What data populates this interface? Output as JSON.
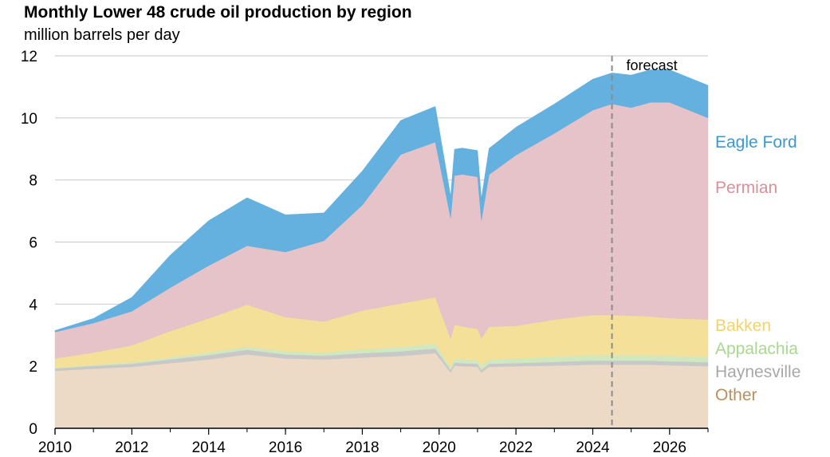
{
  "chart_data": {
    "type": "area",
    "stacked": true,
    "title": "Monthly Lower 48 crude oil production by region",
    "ylabel": "million barrels per day",
    "xlabel": "",
    "ylim": [
      0,
      12
    ],
    "xlim": [
      2010,
      2027
    ],
    "yticks": [
      0,
      2,
      4,
      6,
      8,
      10,
      12
    ],
    "xticks": [
      2010,
      2012,
      2014,
      2016,
      2018,
      2020,
      2022,
      2024,
      2026
    ],
    "forecast_label": "forecast",
    "forecast_start": 2024.5,
    "x": [
      2010,
      2011,
      2012,
      2013,
      2014,
      2015,
      2016,
      2017,
      2018,
      2019,
      2019.9,
      2020.3,
      2020.4,
      2020.6,
      2021.0,
      2021.1,
      2021.3,
      2022,
      2023,
      2024,
      2024.5,
      2025,
      2025.5,
      2026,
      2027
    ],
    "series": [
      {
        "name": "Other",
        "color": "#ecd9c6",
        "values": [
          1.85,
          1.92,
          1.98,
          2.1,
          2.22,
          2.38,
          2.25,
          2.22,
          2.28,
          2.33,
          2.42,
          1.8,
          2.02,
          2.0,
          1.98,
          1.8,
          1.98,
          2.0,
          2.02,
          2.05,
          2.05,
          2.05,
          2.05,
          2.03,
          2.0
        ]
      },
      {
        "name": "Haynesville",
        "color": "#c8c8c8",
        "values": [
          0.08,
          0.09,
          0.1,
          0.12,
          0.14,
          0.15,
          0.13,
          0.12,
          0.14,
          0.15,
          0.15,
          0.08,
          0.1,
          0.1,
          0.1,
          0.08,
          0.1,
          0.1,
          0.12,
          0.13,
          0.13,
          0.13,
          0.13,
          0.13,
          0.13
        ]
      },
      {
        "name": "Appalachia",
        "color": "#cfe8c0",
        "values": [
          0.02,
          0.03,
          0.04,
          0.06,
          0.08,
          0.1,
          0.1,
          0.1,
          0.12,
          0.14,
          0.15,
          0.1,
          0.12,
          0.13,
          0.12,
          0.12,
          0.14,
          0.15,
          0.16,
          0.17,
          0.17,
          0.17,
          0.17,
          0.17,
          0.17
        ]
      },
      {
        "name": "Bakken",
        "color": "#f5e09a",
        "values": [
          0.3,
          0.4,
          0.55,
          0.85,
          1.1,
          1.35,
          1.1,
          1.0,
          1.25,
          1.4,
          1.5,
          0.9,
          1.1,
          1.05,
          1.0,
          0.9,
          1.05,
          1.05,
          1.2,
          1.3,
          1.3,
          1.28,
          1.25,
          1.22,
          1.2
        ]
      },
      {
        "name": "Permian",
        "color": "#e5c3c8",
        "values": [
          0.85,
          0.95,
          1.1,
          1.4,
          1.7,
          1.9,
          2.1,
          2.6,
          3.4,
          4.8,
          5.0,
          3.9,
          4.8,
          4.9,
          4.9,
          3.8,
          4.9,
          5.5,
          6.0,
          6.6,
          6.8,
          6.7,
          6.9,
          6.95,
          6.5
        ]
      },
      {
        "name": "Eagle Ford",
        "color": "#64b0de",
        "values": [
          0.05,
          0.15,
          0.45,
          1.05,
          1.45,
          1.55,
          1.2,
          0.9,
          1.1,
          1.1,
          1.15,
          0.7,
          0.85,
          0.85,
          0.85,
          0.7,
          0.85,
          0.9,
          0.95,
          1.0,
          1.0,
          1.05,
          1.05,
          1.05,
          1.05
        ]
      }
    ],
    "legend_labels": [
      "Eagle Ford",
      "Permian",
      "Bakken",
      "Appalachia",
      "Haynesville",
      "Other"
    ],
    "legend_colors": [
      "#3a9ad0",
      "#d9909a",
      "#f3d36b",
      "#a8d890",
      "#a8a8a8",
      "#b89060"
    ],
    "grid": true,
    "legend_position": "right"
  }
}
